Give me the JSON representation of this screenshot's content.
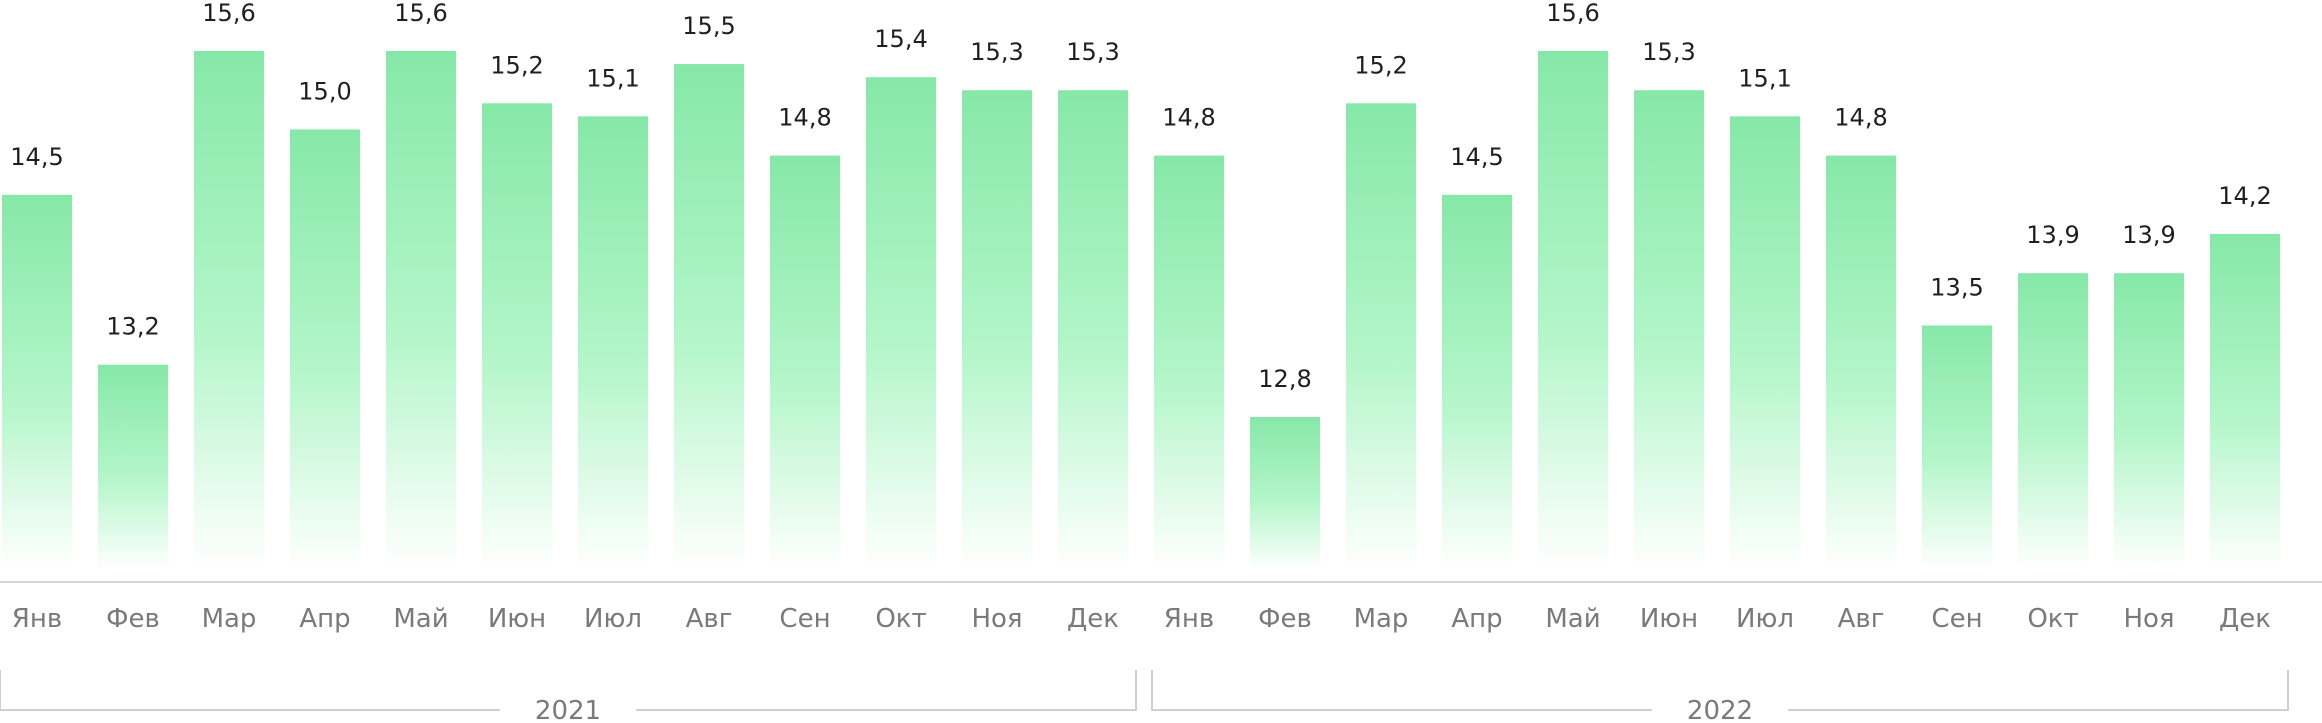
{
  "chart_data": {
    "type": "bar",
    "categories": [
      "Янв",
      "Фев",
      "Мар",
      "Апр",
      "Май",
      "Июн",
      "Июл",
      "Авг",
      "Сен",
      "Окт",
      "Ноя",
      "Дек",
      "Янв",
      "Фев",
      "Мар",
      "Апр",
      "Май",
      "Июн",
      "Июл",
      "Авг",
      "Сен",
      "Окт",
      "Ноя",
      "Дек"
    ],
    "values": [
      14.5,
      13.2,
      15.6,
      15.0,
      15.6,
      15.2,
      15.1,
      15.5,
      14.8,
      15.4,
      15.3,
      15.3,
      14.8,
      12.8,
      15.2,
      14.5,
      15.6,
      15.3,
      15.1,
      14.8,
      13.5,
      13.9,
      13.9,
      14.2
    ],
    "value_labels": [
      "14,5",
      "13,2",
      "15,6",
      "15,0",
      "15,6",
      "15,2",
      "15,1",
      "15,5",
      "14,8",
      "15,4",
      "15,3",
      "15,3",
      "14,8",
      "12,8",
      "15,2",
      "14,5",
      "15,6",
      "15,3",
      "15,1",
      "14,8",
      "13,5",
      "13,9",
      "13,9",
      "14,2"
    ],
    "groups": [
      {
        "label": "2021",
        "from": 0,
        "to": 11
      },
      {
        "label": "2022",
        "from": 12,
        "to": 23
      }
    ],
    "colors": {
      "bar_top": "#86e8a8",
      "bar_bottom": "#ffffff",
      "baseline": "#d4d4d4",
      "bracket": "#cfcfcf"
    },
    "grid": false
  }
}
